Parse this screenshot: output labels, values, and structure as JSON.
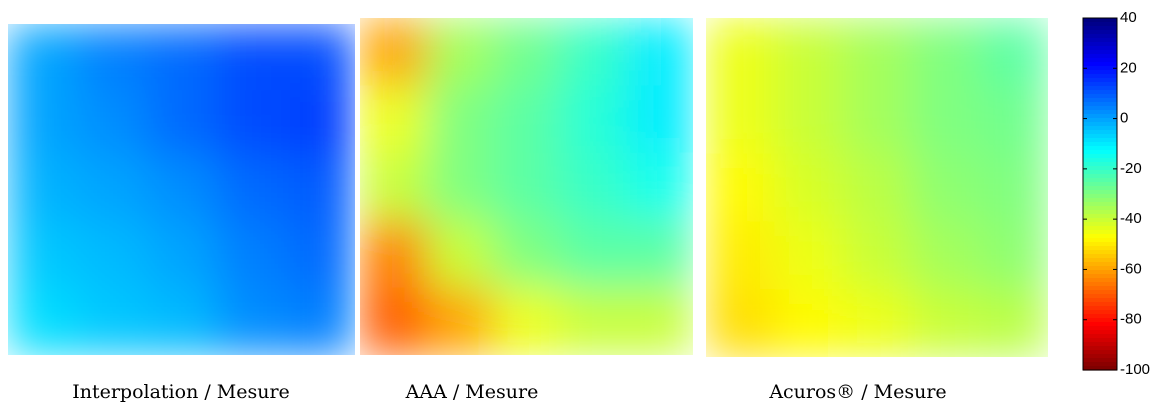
{
  "chart_data": [
    {
      "type": "heatmap",
      "title": "Interpolation / Mesure",
      "values": [
        [
          0,
          5,
          8,
          12,
          12
        ],
        [
          0,
          3,
          8,
          12,
          14
        ],
        [
          -2,
          0,
          3,
          8,
          10
        ],
        [
          -5,
          -3,
          0,
          5,
          8
        ],
        [
          -8,
          -5,
          -3,
          3,
          5
        ]
      ]
    },
    {
      "type": "heatmap",
      "title": "AAA / Mesure",
      "values": [
        [
          -60,
          -35,
          -28,
          -20,
          -10
        ],
        [
          -45,
          -30,
          -25,
          -18,
          -10
        ],
        [
          -40,
          -30,
          -25,
          -20,
          -15
        ],
        [
          -65,
          -40,
          -30,
          -25,
          -25
        ],
        [
          -70,
          -60,
          -45,
          -40,
          -40
        ]
      ]
    },
    {
      "type": "heatmap",
      "title": "Acuros® / Mesure",
      "values": [
        [
          -45,
          -40,
          -35,
          -30,
          -25
        ],
        [
          -45,
          -40,
          -35,
          -30,
          -28
        ],
        [
          -48,
          -42,
          -38,
          -32,
          -30
        ],
        [
          -50,
          -45,
          -40,
          -35,
          -32
        ],
        [
          -52,
          -48,
          -45,
          -40,
          -38
        ]
      ]
    }
  ],
  "colorbar": {
    "colormap": "jet",
    "zlim": [
      -100,
      40
    ],
    "zticks": [
      40,
      20,
      0,
      -20,
      -40,
      -60,
      -80,
      -100
    ]
  }
}
